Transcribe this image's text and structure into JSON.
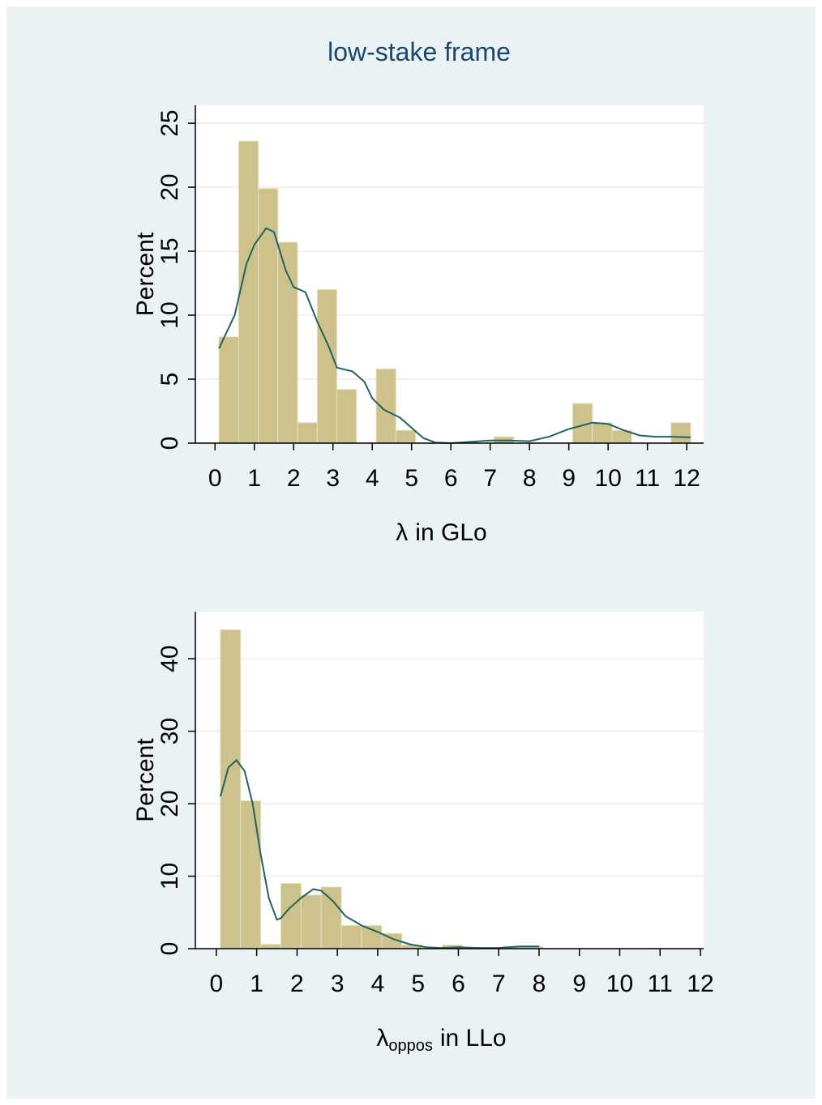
{
  "title": "low-stake frame",
  "chart_data": [
    {
      "type": "histogram",
      "ylabel": "Percent",
      "xlabel": {
        "base": "λ",
        "text": "in GLo"
      },
      "bins": [
        0.1,
        0.6,
        1.1,
        1.6,
        2.1,
        2.6,
        3.1,
        3.6,
        4.1,
        4.6,
        5.1,
        5.6,
        6.1,
        6.6,
        7.1,
        7.6,
        8.1,
        8.6,
        9.1,
        9.6,
        10.1,
        10.6,
        11.1,
        11.6,
        12.1
      ],
      "values": [
        8.3,
        23.6,
        19.9,
        15.7,
        1.6,
        12.0,
        4.2,
        0,
        5.8,
        1.0,
        0,
        0,
        0,
        0,
        0.5,
        0,
        0,
        0,
        3.1,
        1.6,
        1.0,
        0,
        0,
        1.6
      ],
      "color": "#cdc28b",
      "density": {
        "color": "#1f6462",
        "x": [
          0.1,
          0.5,
          0.8,
          1.0,
          1.3,
          1.5,
          1.8,
          2.0,
          2.3,
          2.6,
          2.9,
          3.1,
          3.5,
          3.8,
          4.0,
          4.3,
          4.7,
          5.0,
          5.3,
          5.6,
          6.0,
          6.5,
          7.0,
          7.5,
          8.0,
          8.5,
          9.0,
          9.6,
          10.0,
          10.4,
          10.8,
          11.2,
          11.6,
          12.1
        ],
        "values": [
          7.4,
          10,
          14,
          15.5,
          16.8,
          16.5,
          13.5,
          12.2,
          11.8,
          9.5,
          7.5,
          5.9,
          5.6,
          4.8,
          3.5,
          2.6,
          2.0,
          1.2,
          0.4,
          0.05,
          0,
          0.1,
          0.2,
          0.2,
          0.15,
          0.5,
          1.1,
          1.6,
          1.5,
          1.0,
          0.6,
          0.5,
          0.5,
          0.45
        ]
      },
      "xlim": [
        -0.5,
        12.43
      ],
      "ylim": [
        0,
        26.4
      ],
      "xticks": [
        0,
        1,
        2,
        3,
        4,
        5,
        6,
        7,
        8,
        9,
        10,
        11,
        12
      ],
      "yticks": [
        0,
        5,
        10,
        15,
        20,
        25
      ],
      "grid": true
    },
    {
      "type": "histogram",
      "ylabel": "Percent",
      "xlabel": {
        "base": "λ",
        "subscript": "oppos",
        "text": "in LLo"
      },
      "bins": [
        0.1,
        0.6,
        1.1,
        1.6,
        2.1,
        2.6,
        3.1,
        3.6,
        4.1,
        4.6,
        5.1,
        5.6,
        6.1,
        6.6,
        7.1,
        7.6,
        8.1
      ],
      "values": [
        44,
        20.4,
        0.6,
        9.0,
        7.4,
        8.5,
        3.2,
        3.2,
        2.1,
        0.5,
        0,
        0.5,
        0,
        0,
        0.3,
        0.3
      ],
      "color": "#cdc28b",
      "density": {
        "color": "#1f6462",
        "x": [
          0.1,
          0.3,
          0.5,
          0.7,
          0.9,
          1.1,
          1.3,
          1.5,
          1.6,
          1.8,
          2.1,
          2.4,
          2.6,
          2.9,
          3.2,
          3.6,
          4.0,
          4.4,
          4.8,
          5.2,
          5.6,
          6.0,
          6.5,
          7.0,
          7.5,
          8.0
        ],
        "values": [
          21,
          25,
          26,
          24.5,
          20,
          13,
          7,
          4,
          4.2,
          5.5,
          7,
          8.2,
          8,
          6.5,
          4.5,
          3.2,
          2.3,
          1.3,
          0.6,
          0.2,
          0.1,
          0.2,
          0.1,
          0.1,
          0.3,
          0.3
        ]
      },
      "xlim": [
        -0.52,
        12.08
      ],
      "ylim": [
        0,
        46.5
      ],
      "xticks": [
        0,
        1,
        2,
        3,
        4,
        5,
        6,
        7,
        8,
        9,
        10,
        11,
        12
      ],
      "yticks": [
        0,
        10,
        20,
        30,
        40
      ],
      "grid": true
    }
  ]
}
